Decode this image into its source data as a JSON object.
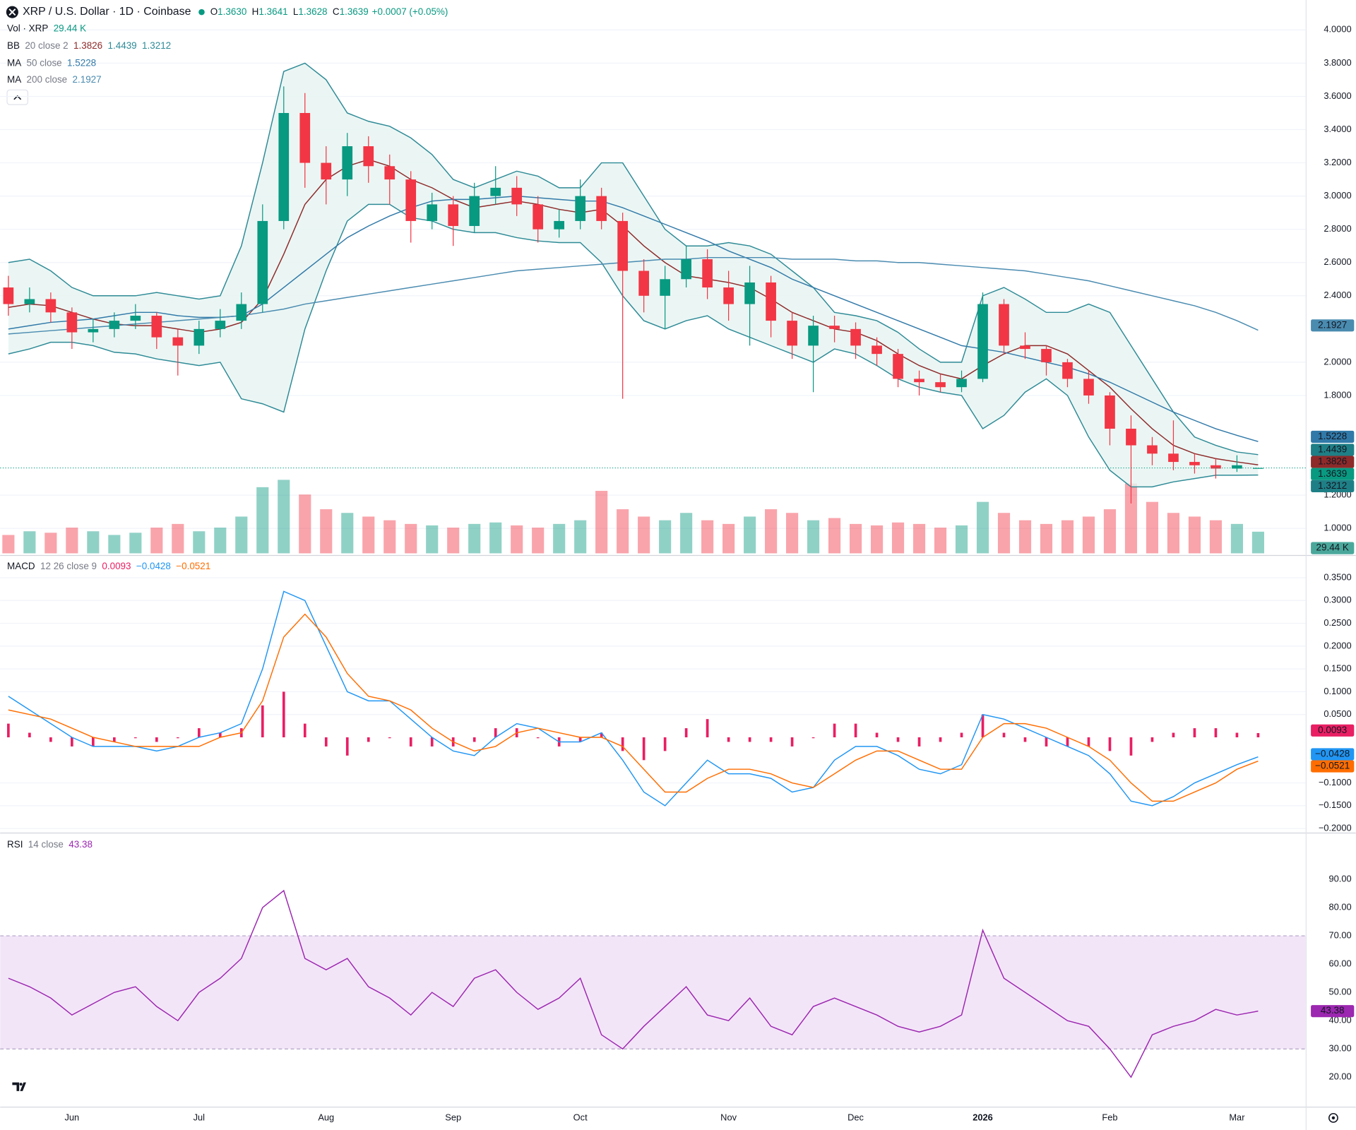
{
  "header": {
    "title": "XRP / U.S. Dollar · 1D · Coinbase",
    "ohlc": [
      {
        "label": "O",
        "value": "1.3630"
      },
      {
        "label": "H",
        "value": "1.3641"
      },
      {
        "label": "L",
        "value": "1.3628"
      },
      {
        "label": "C",
        "value": "1.3639"
      }
    ],
    "change": "+0.0007 (+0.05%)"
  },
  "chart_data": [
    {
      "type": "candlestick",
      "categories": [
        null,
        null,
        null,
        "Jun",
        null,
        null,
        null,
        null,
        null,
        "Jul",
        null,
        null,
        null,
        null,
        null,
        "Aug",
        null,
        null,
        null,
        null,
        null,
        "Sep",
        null,
        null,
        null,
        null,
        null,
        "Oct",
        null,
        null,
        null,
        null,
        null,
        null,
        "Nov",
        null,
        null,
        null,
        null,
        null,
        "Dec",
        null,
        null,
        null,
        null,
        null,
        "2026",
        null,
        null,
        null,
        null,
        null,
        "Feb",
        null,
        null,
        null,
        null,
        null,
        "Mar",
        null
      ],
      "open": [
        2.45,
        2.35,
        2.38,
        2.3,
        2.18,
        2.2,
        2.25,
        2.28,
        2.15,
        2.1,
        2.2,
        2.25,
        2.35,
        2.85,
        3.5,
        3.2,
        3.1,
        3.3,
        3.18,
        3.1,
        2.85,
        2.95,
        2.82,
        3.0,
        3.05,
        2.95,
        2.8,
        2.85,
        3.0,
        2.85,
        2.55,
        2.4,
        2.5,
        2.62,
        2.45,
        2.35,
        2.48,
        2.25,
        2.1,
        2.22,
        2.2,
        2.1,
        2.05,
        1.9,
        1.88,
        1.85,
        1.9,
        2.35,
        2.1,
        2.08,
        2.0,
        1.9,
        1.8,
        1.6,
        1.5,
        1.45,
        1.4,
        1.38,
        1.36,
        1.363
      ],
      "high": [
        2.52,
        2.45,
        2.42,
        2.33,
        2.26,
        2.3,
        2.35,
        2.3,
        2.2,
        2.25,
        2.32,
        2.42,
        2.95,
        3.66,
        3.62,
        3.3,
        3.38,
        3.36,
        3.25,
        3.15,
        3.02,
        3.0,
        3.08,
        3.18,
        3.12,
        3.0,
        2.92,
        3.1,
        3.05,
        2.9,
        2.62,
        2.58,
        2.7,
        2.68,
        2.55,
        2.58,
        2.52,
        2.3,
        2.28,
        2.28,
        2.24,
        2.15,
        2.08,
        1.95,
        1.93,
        1.95,
        2.42,
        2.38,
        2.18,
        2.1,
        2.02,
        1.95,
        1.82,
        1.68,
        1.55,
        1.65,
        1.45,
        1.42,
        1.44,
        1.3641
      ],
      "low": [
        2.28,
        2.3,
        2.24,
        2.08,
        2.12,
        2.15,
        2.2,
        2.08,
        1.92,
        2.05,
        2.15,
        2.2,
        2.3,
        2.8,
        3.05,
        2.95,
        3.0,
        3.08,
        2.95,
        2.72,
        2.8,
        2.7,
        2.78,
        2.95,
        2.88,
        2.72,
        2.75,
        2.8,
        2.8,
        1.78,
        2.3,
        2.2,
        2.45,
        2.38,
        2.25,
        2.1,
        2.15,
        2.02,
        1.82,
        2.12,
        2.02,
        1.98,
        1.85,
        1.8,
        1.82,
        1.82,
        1.88,
        2.05,
        2.02,
        1.92,
        1.85,
        1.75,
        1.5,
        1.15,
        1.38,
        1.35,
        1.33,
        1.3,
        1.34,
        1.3628
      ],
      "close": [
        2.35,
        2.38,
        2.3,
        2.18,
        2.2,
        2.25,
        2.28,
        2.15,
        2.1,
        2.2,
        2.25,
        2.35,
        2.85,
        3.5,
        3.2,
        3.1,
        3.3,
        3.18,
        3.1,
        2.85,
        2.95,
        2.82,
        3.0,
        3.05,
        2.95,
        2.8,
        2.85,
        3.0,
        2.85,
        2.55,
        2.4,
        2.5,
        2.62,
        2.45,
        2.35,
        2.48,
        2.25,
        2.1,
        2.22,
        2.2,
        2.1,
        2.05,
        1.9,
        1.88,
        1.85,
        1.9,
        2.35,
        2.1,
        2.08,
        2.0,
        1.9,
        1.8,
        1.6,
        1.5,
        1.45,
        1.4,
        1.38,
        1.36,
        1.38,
        1.3639
      ],
      "up_color": "#089981",
      "down_color": "#f23645",
      "ylim": [
        0.85,
        4.18
      ],
      "yticks": [
        {
          "value": 1.0,
          "label": "1.0000"
        },
        {
          "value": 1.2,
          "label": "1.2000"
        },
        {
          "value": 1.8,
          "label": "1.8000"
        },
        {
          "value": 2.0,
          "label": "2.0000"
        },
        {
          "value": 2.4,
          "label": "2.4000"
        },
        {
          "value": 2.6,
          "label": "2.6000"
        },
        {
          "value": 2.8,
          "label": "2.8000"
        },
        {
          "value": 3.0,
          "label": "3.0000"
        },
        {
          "value": 3.2,
          "label": "3.2000"
        },
        {
          "value": 3.4,
          "label": "3.4000"
        },
        {
          "value": 3.6,
          "label": "3.6000"
        },
        {
          "value": 3.8,
          "label": "3.8000"
        },
        {
          "value": 4.0,
          "label": "4.0000"
        }
      ],
      "grid": true,
      "volume": {
        "name": "Vol · XRP",
        "value_label": "29.44 K",
        "values": [
          25,
          30,
          28,
          35,
          30,
          25,
          28,
          35,
          40,
          30,
          35,
          50,
          90,
          100,
          80,
          60,
          55,
          50,
          45,
          40,
          38,
          35,
          40,
          42,
          38,
          35,
          40,
          45,
          85,
          60,
          50,
          45,
          55,
          45,
          40,
          50,
          60,
          55,
          45,
          48,
          40,
          38,
          42,
          40,
          35,
          38,
          70,
          55,
          45,
          40,
          45,
          50,
          60,
          95,
          70,
          55,
          50,
          45,
          40,
          29.44
        ]
      },
      "bollinger": {
        "name": "BB",
        "params": "20 close 2",
        "fill": "#e6f4f1",
        "basis": {
          "color": "#8e2a2a",
          "value_label": "1.3826",
          "values": [
            2.33,
            2.35,
            2.34,
            2.3,
            2.26,
            2.23,
            2.22,
            2.22,
            2.2,
            2.18,
            2.2,
            2.24,
            2.38,
            2.65,
            2.95,
            3.1,
            3.18,
            3.22,
            3.18,
            3.1,
            3.05,
            2.98,
            2.93,
            2.95,
            2.97,
            2.95,
            2.92,
            2.9,
            2.92,
            2.82,
            2.7,
            2.6,
            2.52,
            2.5,
            2.48,
            2.45,
            2.38,
            2.3,
            2.25,
            2.2,
            2.18,
            2.13,
            2.05,
            1.98,
            1.93,
            1.9,
            1.98,
            2.05,
            2.1,
            2.1,
            2.05,
            1.95,
            1.85,
            1.72,
            1.6,
            1.5,
            1.45,
            1.42,
            1.4,
            1.3826
          ]
        },
        "upper": {
          "color": "#2e8a96",
          "value_label": "1.4439",
          "values": [
            2.6,
            2.62,
            2.55,
            2.45,
            2.4,
            2.4,
            2.4,
            2.42,
            2.4,
            2.38,
            2.4,
            2.7,
            3.2,
            3.75,
            3.8,
            3.7,
            3.5,
            3.45,
            3.42,
            3.35,
            3.25,
            3.1,
            3.05,
            3.1,
            3.15,
            3.12,
            3.05,
            3.05,
            3.2,
            3.2,
            3.0,
            2.8,
            2.7,
            2.7,
            2.72,
            2.7,
            2.65,
            2.55,
            2.45,
            2.3,
            2.28,
            2.25,
            2.18,
            2.08,
            2.0,
            2.0,
            2.4,
            2.45,
            2.38,
            2.3,
            2.3,
            2.35,
            2.3,
            2.1,
            1.9,
            1.7,
            1.55,
            1.5,
            1.46,
            1.4439
          ]
        },
        "lower": {
          "color": "#2e8a96",
          "value_label": "1.3212",
          "values": [
            2.05,
            2.08,
            2.12,
            2.12,
            2.1,
            2.06,
            2.05,
            2.02,
            2.0,
            1.98,
            2.0,
            1.78,
            1.75,
            1.7,
            2.2,
            2.55,
            2.85,
            2.95,
            2.95,
            2.87,
            2.85,
            2.8,
            2.78,
            2.78,
            2.75,
            2.73,
            2.72,
            2.72,
            2.6,
            2.4,
            2.25,
            2.2,
            2.25,
            2.28,
            2.2,
            2.15,
            2.1,
            2.05,
            2.0,
            2.08,
            2.05,
            1.98,
            1.9,
            1.85,
            1.82,
            1.8,
            1.6,
            1.68,
            1.82,
            1.9,
            1.8,
            1.55,
            1.35,
            1.25,
            1.25,
            1.28,
            1.3,
            1.32,
            1.32,
            1.3212
          ]
        }
      },
      "moving_averages": [
        {
          "name": "MA",
          "params": "50 close",
          "color": "#3179a8",
          "value_label": "1.5228",
          "values": [
            2.2,
            2.22,
            2.24,
            2.25,
            2.26,
            2.28,
            2.3,
            2.3,
            2.28,
            2.27,
            2.27,
            2.28,
            2.35,
            2.45,
            2.55,
            2.65,
            2.75,
            2.82,
            2.88,
            2.93,
            2.97,
            2.98,
            2.98,
            2.99,
            3.0,
            2.99,
            2.98,
            2.97,
            2.97,
            2.93,
            2.88,
            2.83,
            2.78,
            2.73,
            2.67,
            2.62,
            2.57,
            2.5,
            2.45,
            2.4,
            2.35,
            2.3,
            2.25,
            2.2,
            2.15,
            2.1,
            2.08,
            2.06,
            2.03,
            2.0,
            1.97,
            1.93,
            1.88,
            1.82,
            1.76,
            1.7,
            1.65,
            1.6,
            1.56,
            1.5228
          ]
        },
        {
          "name": "MA",
          "params": "200 close",
          "color": "#4a8bb0",
          "value_label": "2.1927",
          "values": [
            2.17,
            2.18,
            2.19,
            2.2,
            2.21,
            2.22,
            2.23,
            2.24,
            2.25,
            2.26,
            2.27,
            2.28,
            2.3,
            2.32,
            2.35,
            2.37,
            2.39,
            2.41,
            2.43,
            2.45,
            2.47,
            2.49,
            2.51,
            2.53,
            2.55,
            2.56,
            2.57,
            2.58,
            2.59,
            2.6,
            2.61,
            2.62,
            2.62,
            2.63,
            2.63,
            2.63,
            2.63,
            2.62,
            2.62,
            2.62,
            2.61,
            2.61,
            2.6,
            2.6,
            2.59,
            2.58,
            2.57,
            2.56,
            2.55,
            2.53,
            2.51,
            2.49,
            2.46,
            2.43,
            2.4,
            2.37,
            2.34,
            2.3,
            2.25,
            2.1927
          ]
        }
      ]
    },
    {
      "type": "macd",
      "name": "MACD",
      "params": "12 26 close 9",
      "ylim": [
        -0.207,
        0.394
      ],
      "yticks": [
        {
          "value": 0.35,
          "label": "0.3500"
        },
        {
          "value": 0.3,
          "label": "0.3000"
        },
        {
          "value": 0.25,
          "label": "0.2500"
        },
        {
          "value": 0.2,
          "label": "0.2000"
        },
        {
          "value": 0.15,
          "label": "0.1500"
        },
        {
          "value": 0.1,
          "label": "0.1000"
        },
        {
          "value": 0.05,
          "label": "0.0500"
        },
        {
          "value": -0.1,
          "label": "−0.1000"
        },
        {
          "value": -0.15,
          "label": "−0.1500"
        },
        {
          "value": -0.2,
          "label": "−0.2000"
        }
      ],
      "series": [
        {
          "name": "histogram",
          "color": "#e91e63",
          "value_label": "0.0093",
          "values": [
            0.03,
            0.01,
            -0.01,
            -0.02,
            -0.02,
            -0.01,
            0,
            -0.01,
            0,
            0.02,
            0.01,
            0.02,
            0.07,
            0.1,
            0.03,
            -0.02,
            -0.04,
            -0.01,
            0,
            -0.02,
            -0.02,
            -0.02,
            -0.01,
            0.02,
            0.02,
            0,
            -0.02,
            -0.01,
            0.01,
            -0.03,
            -0.05,
            -0.03,
            0.02,
            0.04,
            -0.01,
            -0.01,
            -0.01,
            -0.02,
            0,
            0.03,
            0.03,
            0.01,
            -0.01,
            -0.02,
            -0.01,
            0.01,
            0.05,
            0.01,
            -0.01,
            -0.02,
            -0.02,
            -0.02,
            -0.03,
            -0.04,
            -0.01,
            0.01,
            0.02,
            0.02,
            0.01,
            0.0093
          ]
        },
        {
          "name": "macd",
          "color": "#2196f3",
          "value_label": "−0.0428",
          "values": [
            0.09,
            0.06,
            0.03,
            0.0,
            -0.02,
            -0.02,
            -0.02,
            -0.03,
            -0.02,
            0.0,
            0.01,
            0.03,
            0.15,
            0.32,
            0.3,
            0.2,
            0.1,
            0.08,
            0.08,
            0.04,
            0.0,
            -0.03,
            -0.04,
            0.0,
            0.03,
            0.02,
            -0.01,
            -0.01,
            0.01,
            -0.05,
            -0.12,
            -0.15,
            -0.1,
            -0.05,
            -0.08,
            -0.08,
            -0.09,
            -0.12,
            -0.11,
            -0.05,
            -0.02,
            -0.02,
            -0.04,
            -0.07,
            -0.08,
            -0.06,
            0.05,
            0.04,
            0.02,
            0.0,
            -0.02,
            -0.04,
            -0.08,
            -0.14,
            -0.15,
            -0.13,
            -0.1,
            -0.08,
            -0.06,
            -0.0428
          ]
        },
        {
          "name": "signal",
          "color": "#ff6d00",
          "value_label": "−0.0521",
          "values": [
            0.06,
            0.05,
            0.04,
            0.02,
            0.0,
            -0.01,
            -0.02,
            -0.02,
            -0.02,
            -0.02,
            0.0,
            0.01,
            0.08,
            0.22,
            0.27,
            0.22,
            0.14,
            0.09,
            0.08,
            0.06,
            0.02,
            -0.01,
            -0.03,
            -0.02,
            0.01,
            0.02,
            0.01,
            0.0,
            0.0,
            -0.02,
            -0.07,
            -0.12,
            -0.12,
            -0.09,
            -0.07,
            -0.07,
            -0.08,
            -0.1,
            -0.11,
            -0.08,
            -0.05,
            -0.03,
            -0.03,
            -0.05,
            -0.07,
            -0.07,
            0.0,
            0.03,
            0.03,
            0.02,
            0.0,
            -0.02,
            -0.05,
            -0.1,
            -0.14,
            -0.14,
            -0.12,
            -0.1,
            -0.07,
            -0.0521
          ]
        }
      ]
    },
    {
      "type": "rsi",
      "name": "RSI",
      "params": "14 close",
      "color": "#9c27b0",
      "value_label": "43.38",
      "band": [
        30,
        70
      ],
      "band_color": "#f3e5f8",
      "ylim": [
        10.2,
        105.9
      ],
      "yticks": [
        {
          "value": 20,
          "label": "20.00"
        },
        {
          "value": 30,
          "label": "30.00"
        },
        {
          "value": 40,
          "label": "40.00"
        },
        {
          "value": 50,
          "label": "50.00"
        },
        {
          "value": 60,
          "label": "60.00"
        },
        {
          "value": 70,
          "label": "70.00"
        },
        {
          "value": 80,
          "label": "80.00"
        },
        {
          "value": 90,
          "label": "90.00"
        }
      ],
      "values": [
        55,
        52,
        48,
        42,
        46,
        50,
        52,
        45,
        40,
        50,
        55,
        62,
        80,
        86,
        62,
        58,
        62,
        52,
        48,
        42,
        50,
        45,
        55,
        58,
        50,
        44,
        48,
        55,
        35,
        30,
        38,
        45,
        52,
        42,
        40,
        48,
        38,
        35,
        45,
        48,
        45,
        42,
        38,
        36,
        38,
        42,
        72,
        55,
        50,
        45,
        40,
        38,
        30,
        20,
        35,
        38,
        40,
        44,
        42,
        43.38
      ]
    }
  ]
}
